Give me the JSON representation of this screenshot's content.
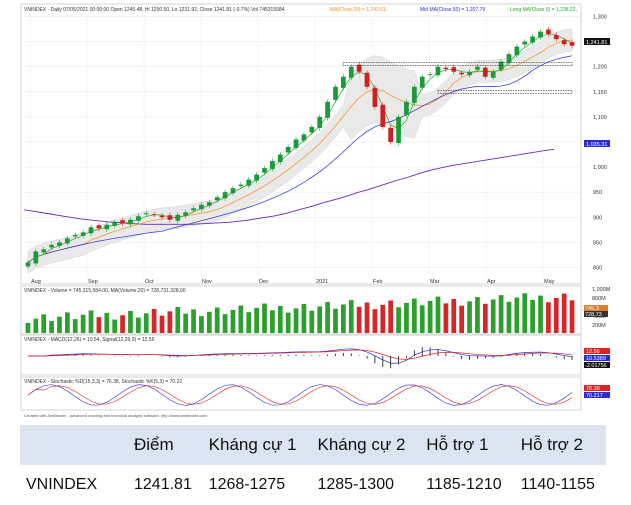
{
  "chart_data": {
    "type": "candlestick",
    "title": "VNINDEX - Daily 07/05/2021 00:00:00 Open 1245.48, Hi 1250.50, Lo 1231.92, Close 1241.81 (-0.7%) Vol 745315584",
    "legend": [
      {
        "name": "MA(Close,20) = 1,242.61",
        "color": "#ff8c1a"
      },
      {
        "name": "Mid MA(Close,50) = 1,207.79",
        "color": "#2b2bd6"
      },
      {
        "name": "Long MA(Close,5) = 1,238.22,",
        "color": "#22aa22"
      }
    ],
    "x_tick_labels": [
      "Aug",
      "Sep",
      "Oct",
      "Nov",
      "Dec",
      "2021",
      "Feb",
      "Mar",
      "Apr",
      "May"
    ],
    "y_tick_labels": [
      "800",
      "850",
      "900",
      "950",
      "1,000",
      "1,050",
      "1,100",
      "1,150",
      "1,200",
      "1,250",
      "1,300"
    ],
    "ylim": [
      775,
      1305
    ],
    "last_price_label": "1,241.81",
    "ma_label": "1,035.31",
    "close": [
      810,
      832,
      836,
      845,
      850,
      858,
      865,
      870,
      880,
      878,
      885,
      890,
      888,
      895,
      902,
      908,
      905,
      900,
      895,
      905,
      910,
      918,
      925,
      930,
      940,
      950,
      958,
      965,
      975,
      985,
      998,
      1012,
      1025,
      1040,
      1055,
      1065,
      1080,
      1100,
      1130,
      1160,
      1180,
      1200,
      1190,
      1160,
      1120,
      1080,
      1050,
      1100,
      1130,
      1160,
      1180,
      1185,
      1200,
      1195,
      1190,
      1185,
      1190,
      1200,
      1180,
      1190,
      1210,
      1225,
      1240,
      1250,
      1260,
      1270,
      1265,
      1255,
      1245,
      1241.81
    ],
    "long_ma": {
      "label": "MA",
      "values": [
        915,
        912,
        909,
        906,
        903,
        900,
        897,
        895,
        893,
        891,
        890,
        888,
        887,
        886,
        886,
        886,
        886,
        886,
        886,
        887,
        888,
        889,
        890,
        892,
        894,
        897,
        900,
        903,
        907,
        912,
        917,
        922,
        928,
        933,
        938,
        944,
        950,
        955,
        961,
        967,
        973,
        978,
        984,
        990,
        995,
        999,
        1003,
        1006,
        1009,
        1012,
        1015,
        1018,
        1021,
        1024,
        1027,
        1030,
        1033,
        1035.31
      ]
    },
    "volume_panel": {
      "title": "VNINDEX - Volume = 745,315,584.00, MA(Volume,20) = 728,731,328.00",
      "tick_labels": [
        "1,000M",
        "800M",
        "600M",
        "400M",
        "200M"
      ],
      "last_label": "745,3",
      "ma_label": "728,73"
    },
    "macd_panel": {
      "title": "VNINDEX - MACD(12,26) = 10.54, Signal(12,26,9) = 12.56",
      "labels": [
        "12.56",
        "10.5389",
        "-2.01756"
      ]
    },
    "stochastic_panel": {
      "title": "VNINDEX - Stochastic %D(15,3,3) = 76.38, Stochastic %K(5,3) = 70.22",
      "labels": [
        "76.38",
        "70.217"
      ]
    },
    "footer": "Created with AmiBroker - advanced charting and technical analysis software. http://www.amibroker.com"
  },
  "table": {
    "headers": [
      "",
      "Điểm",
      "Kháng cự 1",
      "Kháng cự 2",
      "Hỗ trợ 1",
      "Hỗ trợ 2"
    ],
    "rows": [
      [
        "VNINDEX",
        "1241.81",
        "1268-1275",
        "1285-1300",
        "1185-1210",
        "1140-1155"
      ]
    ]
  }
}
